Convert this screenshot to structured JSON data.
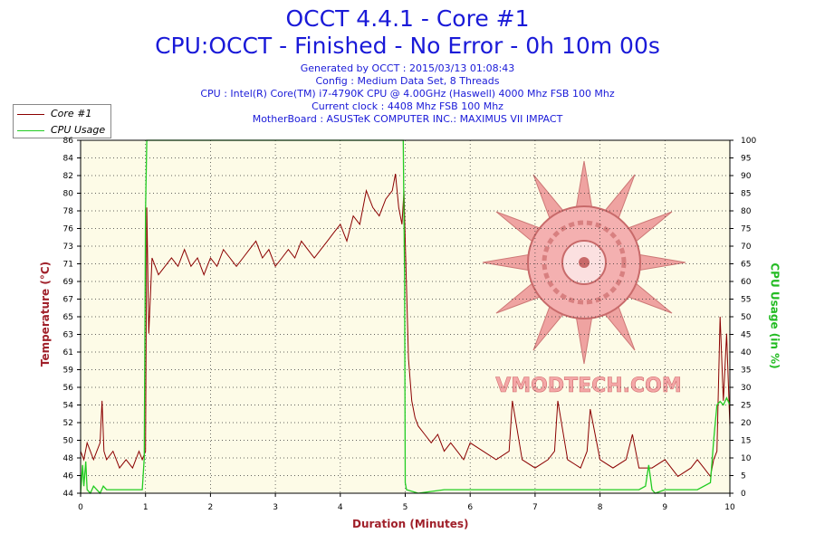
{
  "header": {
    "title": "OCCT 4.4.1 - Core #1",
    "subtitle": "CPU:OCCT - Finished - No Error - 0h 10m 00s",
    "info_lines": [
      "Generated by OCCT : 2015/03/13 01:08:43",
      "Config : Medium Data Set, 8 Threads",
      "CPU : Intel(R) Core(TM) i7-4790K CPU @ 4.00GHz (Haswell) 4000 Mhz FSB 100 Mhz",
      "Current clock : 4408 Mhz FSB 100 Mhz",
      "MotherBoard : ASUSTeK COMPUTER INC.: MAXIMUS VII IMPACT"
    ]
  },
  "watermark": {
    "text": "VMODTECH.COM"
  },
  "colors": {
    "temperature": "#8b0000",
    "cpu_usage": "#22cc22",
    "plot_bg": "#fdfbe7",
    "title": "#1a1ad8",
    "axis_title": "#a0202a"
  },
  "chart_data": {
    "type": "line",
    "xlabel": "Duration (Minutes)",
    "ylabel": "Temperature (°C)",
    "y2label": "CPU Usage (in %)",
    "xlim": [
      0,
      10
    ],
    "ylim": [
      44,
      86
    ],
    "y2lim": [
      0,
      100
    ],
    "x_ticks": [
      "0",
      "1",
      "2",
      "3",
      "4",
      "5",
      "6",
      "7",
      "8",
      "9",
      "10"
    ],
    "y_ticks": [
      "44",
      "46",
      "48",
      "50",
      "52",
      "54",
      "56",
      "59",
      "61",
      "63",
      "65",
      "67",
      "69",
      "71",
      "73",
      "76",
      "78",
      "80",
      "82",
      "84",
      "86"
    ],
    "y2_ticks": [
      "0",
      "5",
      "10",
      "15",
      "20",
      "25",
      "30",
      "35",
      "40",
      "45",
      "50",
      "55",
      "60",
      "65",
      "70",
      "75",
      "80",
      "85",
      "90",
      "95",
      "100"
    ],
    "grid": true,
    "legend_position": "top-left",
    "series": [
      {
        "name": "Core #1",
        "axis": "left",
        "x": [
          0,
          0.05,
          0.1,
          0.15,
          0.2,
          0.25,
          0.3,
          0.33,
          0.36,
          0.4,
          0.5,
          0.6,
          0.7,
          0.8,
          0.9,
          0.95,
          1.0,
          1.02,
          1.05,
          1.1,
          1.2,
          1.3,
          1.4,
          1.5,
          1.6,
          1.7,
          1.8,
          1.9,
          2.0,
          2.1,
          2.2,
          2.3,
          2.4,
          2.5,
          2.6,
          2.7,
          2.8,
          2.9,
          3.0,
          3.1,
          3.2,
          3.3,
          3.4,
          3.5,
          3.6,
          3.7,
          3.8,
          3.9,
          4.0,
          4.1,
          4.2,
          4.3,
          4.4,
          4.5,
          4.6,
          4.7,
          4.8,
          4.85,
          4.9,
          4.95,
          4.98,
          5.0,
          5.05,
          5.1,
          5.15,
          5.2,
          5.3,
          5.4,
          5.5,
          5.6,
          5.7,
          5.8,
          5.9,
          6.0,
          6.2,
          6.4,
          6.6,
          6.65,
          6.8,
          7.0,
          7.2,
          7.3,
          7.35,
          7.5,
          7.7,
          7.8,
          7.85,
          8.0,
          8.2,
          8.4,
          8.5,
          8.6,
          8.8,
          9.0,
          9.2,
          9.4,
          9.5,
          9.6,
          9.7,
          9.75,
          9.8,
          9.85,
          9.9,
          9.95,
          10.0
        ],
        "y": [
          49,
          48,
          50,
          49,
          48,
          49,
          50,
          55,
          49,
          48,
          49,
          47,
          48,
          47,
          49,
          48,
          49,
          78,
          63,
          72,
          70,
          71,
          72,
          71,
          73,
          71,
          72,
          70,
          72,
          71,
          73,
          72,
          71,
          72,
          73,
          74,
          72,
          73,
          71,
          72,
          73,
          72,
          74,
          73,
          72,
          73,
          74,
          75,
          76,
          74,
          77,
          76,
          80,
          78,
          77,
          79,
          80,
          82,
          78,
          76,
          80,
          74,
          60,
          55,
          53,
          52,
          51,
          50,
          51,
          49,
          50,
          49,
          48,
          50,
          49,
          48,
          49,
          55,
          48,
          47,
          48,
          49,
          55,
          48,
          47,
          49,
          54,
          48,
          47,
          48,
          51,
          47,
          47,
          48,
          46,
          47,
          48,
          47,
          46,
          48,
          49,
          65,
          55,
          63,
          52
        ]
      },
      {
        "name": "CPU Usage",
        "axis": "right",
        "x": [
          0,
          0.03,
          0.05,
          0.08,
          0.1,
          0.15,
          0.2,
          0.3,
          0.35,
          0.4,
          0.6,
          0.8,
          0.95,
          0.98,
          1.0,
          1.02,
          1.5,
          2.0,
          3.0,
          4.0,
          4.9,
          4.97,
          4.99,
          5.0,
          5.02,
          5.2,
          5.6,
          6.0,
          7.0,
          8.0,
          8.6,
          8.7,
          8.75,
          8.8,
          8.85,
          9.0,
          9.5,
          9.7,
          9.75,
          9.8,
          9.85,
          9.9,
          9.95,
          10.0
        ],
        "y": [
          0,
          8,
          2,
          9,
          1,
          0,
          2,
          0,
          2,
          1,
          1,
          1,
          1,
          10,
          80,
          100,
          100,
          100,
          100,
          100,
          100,
          100,
          60,
          3,
          1,
          0,
          1,
          1,
          1,
          1,
          1,
          2,
          8,
          1,
          0,
          1,
          1,
          3,
          15,
          25,
          26,
          25,
          27,
          25
        ]
      }
    ]
  }
}
